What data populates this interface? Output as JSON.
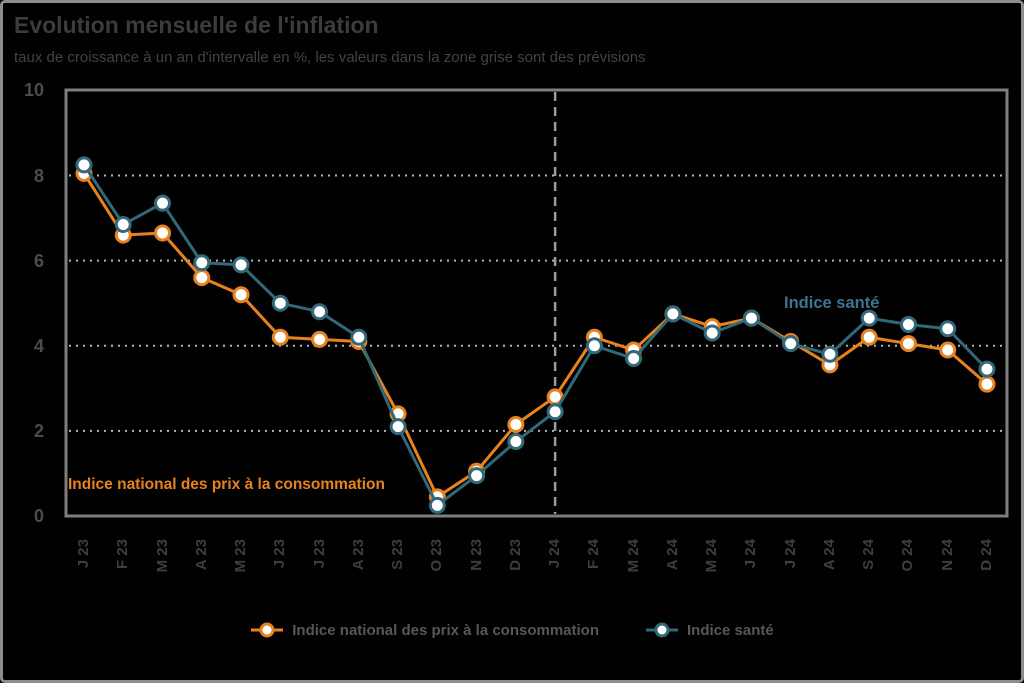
{
  "header": {
    "title": "Evolution mensuelle de l'inflation",
    "subtitle": "taux de croissance à un an d'intervalle en %, les valeurs dans la zone grise sont des prévisions"
  },
  "chart_data": {
    "type": "line",
    "title": "Evolution mensuelle de l'inflation",
    "subtitle": "taux de croissance à un an d'intervalle en %, les valeurs dans la zone grise sont des prévisions",
    "categories": [
      "J 23",
      "F 23",
      "M 23",
      "A 23",
      "M 23",
      "J 23",
      "J 23",
      "A 23",
      "S 23",
      "O 23",
      "N 23",
      "D 23",
      "J 24",
      "F 24",
      "M 24",
      "A 24",
      "M 24",
      "J 24",
      "J 24",
      "A 24",
      "S 24",
      "O 24",
      "N 24",
      "D 24"
    ],
    "series": [
      {
        "name": "Indice national des prix à la consommation",
        "color": "#E8821E",
        "marker": "circle-white-fill",
        "values": [
          8.05,
          6.6,
          6.65,
          5.6,
          5.2,
          4.2,
          4.15,
          4.1,
          2.4,
          0.45,
          1.05,
          2.15,
          2.8,
          4.2,
          3.9,
          4.75,
          4.45,
          4.65,
          4.1,
          3.55,
          4.2,
          4.05,
          3.9,
          3.1
        ]
      },
      {
        "name": "Indice santé",
        "color": "#31687A",
        "marker": "circle-white-fill",
        "values": [
          8.25,
          6.85,
          7.35,
          5.95,
          5.9,
          5.0,
          4.8,
          4.2,
          2.1,
          0.25,
          0.95,
          1.75,
          2.45,
          4.0,
          3.7,
          4.75,
          4.3,
          4.65,
          4.05,
          3.8,
          4.65,
          4.5,
          4.4,
          3.45
        ]
      }
    ],
    "ylim": [
      0,
      10
    ],
    "yticks": [
      0,
      2,
      4,
      6,
      8,
      10
    ],
    "grid": "horizontal-dotted",
    "forecast_divider_after_category": "D 23",
    "forecast_divider_index": 12,
    "legend_position": "bottom",
    "annotations": [
      {
        "text": "Indice national des prix à la consommation",
        "color": "#E8821E"
      },
      {
        "text": "Indice santé",
        "color": "#3E7490"
      }
    ]
  },
  "legend": {
    "items": [
      {
        "label": "Indice national des prix à la consommation",
        "color": "#E8821E"
      },
      {
        "label": "Indice santé",
        "color": "#31687A"
      }
    ]
  }
}
